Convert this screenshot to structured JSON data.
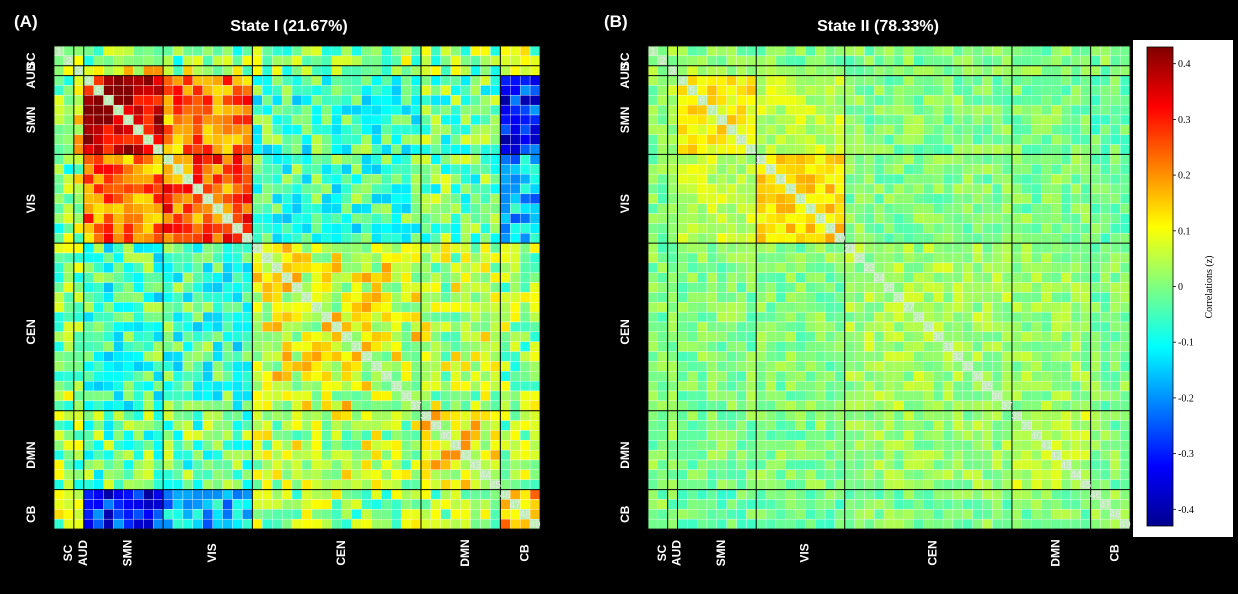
{
  "chart_data": {
    "type": "heatmap",
    "n_components": 49,
    "networks": [
      {
        "name": "SC",
        "start": 1,
        "end": 2
      },
      {
        "name": "AUD",
        "start": 3,
        "end": 3
      },
      {
        "name": "SMN",
        "start": 4,
        "end": 11
      },
      {
        "name": "VIS",
        "start": 12,
        "end": 20
      },
      {
        "name": "CEN",
        "start": 21,
        "end": 37
      },
      {
        "name": "DMN",
        "start": 38,
        "end": 45
      },
      {
        "name": "CB",
        "start": 46,
        "end": 49
      }
    ],
    "side_labels": [
      "SC",
      "AUD",
      "SMN",
      "VIS",
      "CEN",
      "DMN",
      "CB"
    ],
    "bottom_labels": [
      "SC",
      "AUD",
      "SMN",
      "VIS",
      "CEN",
      "DMN",
      "CB"
    ],
    "states": [
      {
        "panel_label": "(A)",
        "title": "State I (21.67%)",
        "scale": 1.0,
        "block_means": [
          [
            0.0,
            0.05,
            0.0,
            0.0,
            0.02,
            0.02,
            0.03
          ],
          [
            0.05,
            0.0,
            0.1,
            0.05,
            0.0,
            0.0,
            0.05
          ],
          [
            0.0,
            0.1,
            0.38,
            0.22,
            -0.05,
            -0.02,
            -0.3
          ],
          [
            0.0,
            0.05,
            0.22,
            0.25,
            -0.05,
            -0.02,
            -0.15
          ],
          [
            0.02,
            0.0,
            -0.05,
            -0.05,
            0.08,
            0.05,
            0.02
          ],
          [
            0.02,
            0.0,
            -0.02,
            -0.02,
            0.05,
            0.1,
            0.02
          ],
          [
            0.03,
            0.05,
            -0.3,
            -0.15,
            0.02,
            0.02,
            0.2
          ]
        ]
      },
      {
        "panel_label": "(B)",
        "title": "State II (78.33%)",
        "scale": 0.45,
        "block_means": [
          [
            0.0,
            0.03,
            0.0,
            0.0,
            0.0,
            0.0,
            0.0
          ],
          [
            0.03,
            0.0,
            0.03,
            0.0,
            0.0,
            0.0,
            0.0
          ],
          [
            0.0,
            0.03,
            0.12,
            0.05,
            0.0,
            0.0,
            -0.02
          ],
          [
            0.0,
            0.0,
            0.05,
            0.14,
            0.0,
            0.0,
            -0.02
          ],
          [
            0.0,
            0.0,
            0.0,
            0.0,
            0.03,
            0.02,
            0.0
          ],
          [
            0.0,
            0.0,
            0.0,
            0.0,
            0.02,
            0.05,
            0.0
          ],
          [
            0.0,
            0.0,
            -0.02,
            -0.02,
            0.0,
            0.0,
            0.05
          ]
        ]
      }
    ],
    "colorbar": {
      "title": "Correlations (z)",
      "ticks": [
        {
          "value": 0.4,
          "label": "0.4"
        },
        {
          "value": 0.3,
          "label": "0.3"
        },
        {
          "value": 0.2,
          "label": "0.2"
        },
        {
          "value": 0.1,
          "label": "0.1"
        },
        {
          "value": 0,
          "label": "0"
        },
        {
          "value": -0.1,
          "label": "-0.1"
        },
        {
          "value": -0.2,
          "label": "-0.2"
        },
        {
          "value": -0.3,
          "label": "-0.3"
        },
        {
          "value": -0.4,
          "label": "-0.4"
        }
      ],
      "range": [
        -0.43,
        0.43
      ],
      "colormap": "jet"
    }
  }
}
